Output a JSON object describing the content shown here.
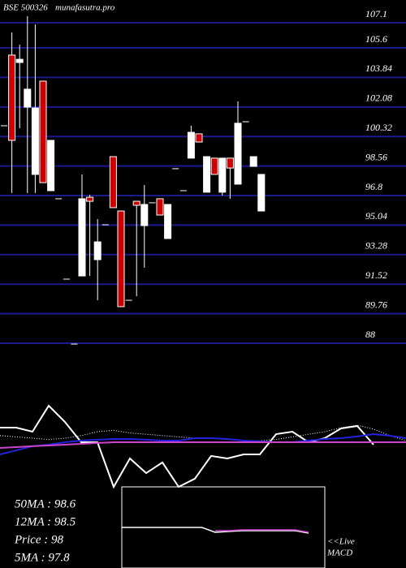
{
  "chart_data": {
    "type": "candlestick",
    "title": "BSE 500326",
    "subtitle": "munafasutra.pro",
    "ylim": [
      88,
      107.1
    ],
    "yticks": [
      107.1,
      105.6,
      103.84,
      102.08,
      100.32,
      98.56,
      96.8,
      95.04,
      93.28,
      91.52,
      89.76,
      88
    ],
    "grid": true,
    "grid_color": "#1a1a8c",
    "up_color": "#ffffff",
    "down_color": "#cc0000",
    "open": [
      100.96,
      105.17,
      104.73,
      102.07,
      98.06,
      103.62,
      97.09,
      96.61,
      91.82,
      87.95,
      92.01,
      96.7,
      92.98,
      95.06,
      99.12,
      95.88,
      90.56,
      96.46,
      95.01,
      96.37,
      96.61,
      94.24,
      98.4,
      97.09,
      99.03,
      100.48,
      97.0,
      99.03,
      97.0,
      99.03,
      97.48,
      101.2,
      98.54,
      95.88
    ],
    "high": [
      100.96,
      106.52,
      105.79,
      107.49,
      107.0,
      103.62,
      100.09,
      96.61,
      91.82,
      87.95,
      98.06,
      96.85,
      95.4,
      95.06,
      99.12,
      95.88,
      90.56,
      96.46,
      97.43,
      96.37,
      96.61,
      96.27,
      98.4,
      97.09,
      100.96,
      100.48,
      99.12,
      99.03,
      99.03,
      99.03,
      102.41,
      101.2,
      99.12,
      98.06
    ],
    "low": [
      100.96,
      96.95,
      100.81,
      96.95,
      96.95,
      97.57,
      97.09,
      96.61,
      91.82,
      87.95,
      92.01,
      92.01,
      90.56,
      95.06,
      96.08,
      90.18,
      90.56,
      90.8,
      92.5,
      96.37,
      95.64,
      94.24,
      98.4,
      97.09,
      99.03,
      99.99,
      97.0,
      98.06,
      96.8,
      96.61,
      97.48,
      101.2,
      98.54,
      95.88
    ],
    "close": [
      100.96,
      100.09,
      104.92,
      103.14,
      102.02,
      97.57,
      100.09,
      96.61,
      91.82,
      87.95,
      96.61,
      96.46,
      94.04,
      95.06,
      96.08,
      90.18,
      90.56,
      96.22,
      96.27,
      96.37,
      95.64,
      96.27,
      98.4,
      97.09,
      100.57,
      99.99,
      99.12,
      98.06,
      99.03,
      98.44,
      101.11,
      101.2,
      99.12,
      98.06
    ],
    "indicator": {
      "ylim": [
        0,
        100
      ],
      "series": [
        {
          "color": "#ffffff",
          "style": "solid",
          "values": [
            58.1,
            58.1,
            55,
            75,
            62.5,
            46.9,
            46.9,
            12.5,
            34.4,
            23.1,
            31.3,
            12.5,
            18.8,
            36.3,
            34.4,
            37.5,
            37.5,
            53.1,
            55,
            46.9,
            50,
            57.5,
            59.4,
            45,
            null,
            null
          ]
        },
        {
          "color": "#ffffff",
          "style": "dotted",
          "values": [
            52,
            51,
            50,
            49,
            50,
            52,
            55,
            56,
            54,
            53,
            52,
            51,
            50,
            50,
            49,
            48,
            48,
            49,
            51,
            53,
            55,
            58,
            60,
            57,
            52,
            48
          ]
        },
        {
          "color": "#2222dd",
          "style": "solid",
          "values": [
            37.5,
            40.6,
            43.8,
            45,
            46.9,
            48.1,
            48.8,
            49.4,
            49.4,
            48.8,
            48.1,
            48.1,
            50,
            50,
            49.4,
            48.1,
            47.5,
            46.9,
            46.9,
            48.1,
            49.4,
            50,
            51.3,
            53.1,
            51.9,
            50
          ]
        },
        {
          "color": "#cc44cc",
          "style": "solid",
          "values": [
            42.5,
            43.1,
            43.8,
            44.4,
            45,
            45.6,
            46.3,
            46.9,
            46.9,
            46.9,
            46.9,
            46.9,
            46.9,
            46.9,
            46.9,
            46.9,
            46.9,
            46.9,
            46.9,
            46.9,
            46.9,
            46.9,
            46.9,
            46.9,
            46.9,
            46.9
          ]
        }
      ]
    },
    "macd": {
      "ylim": [
        0,
        100
      ],
      "series": [
        {
          "color": "#ffffff",
          "values": [
            50,
            50,
            50,
            50,
            50,
            50,
            50,
            44,
            45,
            46,
            46,
            46,
            46,
            46,
            43
          ]
        },
        {
          "color": "#cc44cc",
          "values": [
            null,
            null,
            null,
            null,
            null,
            null,
            null,
            46,
            46,
            47,
            47,
            47,
            47,
            47,
            44
          ]
        }
      ],
      "label_lines": [
        "<<Live",
        "MACD"
      ]
    },
    "stats": [
      "50MA : 98.6",
      "12MA : 98.5",
      "Price : 98",
      "5MA : 97.8"
    ]
  }
}
